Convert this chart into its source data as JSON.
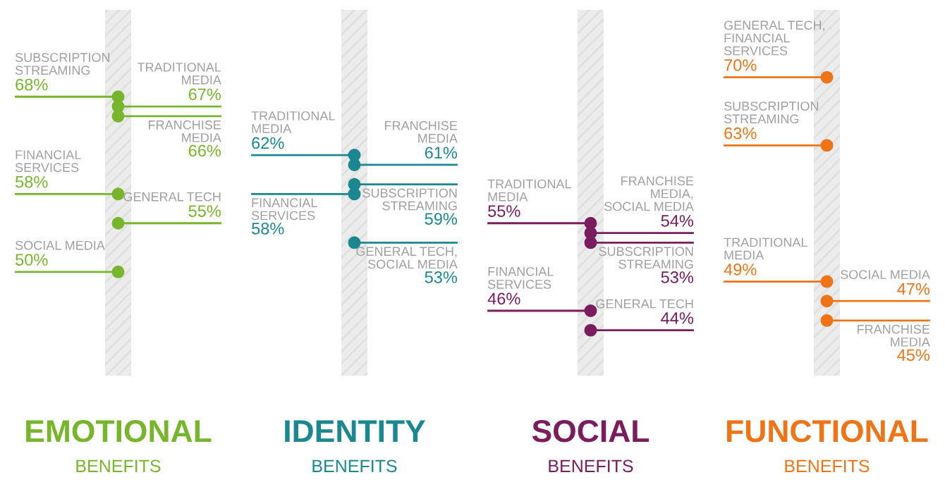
{
  "chart_data": [
    {
      "type": "other",
      "title": "EMOTIONAL",
      "subtitle": "BENEFITS",
      "color": "#77b52c",
      "categories": [
        "SUBSCRIPTION\nSTREAMING",
        "TRADITIONAL\nMEDIA",
        "FRANCHISE\nMEDIA",
        "FINANCIAL\nSERVICES",
        "GENERAL TECH",
        "SOCIAL MEDIA"
      ],
      "values": [
        68,
        67,
        66,
        58,
        55,
        50
      ],
      "value_labels": [
        "68%",
        "67%",
        "66%",
        "58%",
        "55%",
        "50%"
      ]
    },
    {
      "type": "other",
      "title": "IDENTITY",
      "subtitle": "BENEFITS",
      "color": "#1b8790",
      "categories": [
        "TRADITIONAL\nMEDIA",
        "FRANCHISE\nMEDIA",
        "SUBSCRIPTION\nSTREAMING",
        "FINANCIAL\nSERVICES",
        "GENERAL TECH,\nSOCIAL MEDIA"
      ],
      "values": [
        62,
        61,
        59,
        58,
        53
      ],
      "value_labels": [
        "62%",
        "61%",
        "59%",
        "58%",
        "53%"
      ]
    },
    {
      "type": "other",
      "title": "SOCIAL",
      "subtitle": "BENEFITS",
      "color": "#7a1d5e",
      "categories": [
        "TRADITIONAL\nMEDIA",
        "FRANCHISE\nMEDIA,\nSOCIAL MEDIA",
        "SUBSCRIPTION\nSTREAMING",
        "FINANCIAL\nSERVICES",
        "GENERAL TECH"
      ],
      "values": [
        55,
        54,
        53,
        46,
        44
      ],
      "value_labels": [
        "55%",
        "54%",
        "53%",
        "46%",
        "44%"
      ]
    },
    {
      "type": "other",
      "title": "FUNCTIONAL",
      "subtitle": "BENEFITS",
      "color": "#ee7418",
      "categories": [
        "GENERAL TECH,\nFINANCIAL\nSERVICES",
        "SUBSCRIPTION\nSTREAMING",
        "TRADITIONAL\nMEDIA",
        "SOCIAL MEDIA",
        "FRANCHISE\nMEDIA"
      ],
      "values": [
        70,
        63,
        49,
        47,
        45
      ],
      "value_labels": [
        "70%",
        "63%",
        "49%",
        "47%",
        "45%"
      ]
    }
  ]
}
